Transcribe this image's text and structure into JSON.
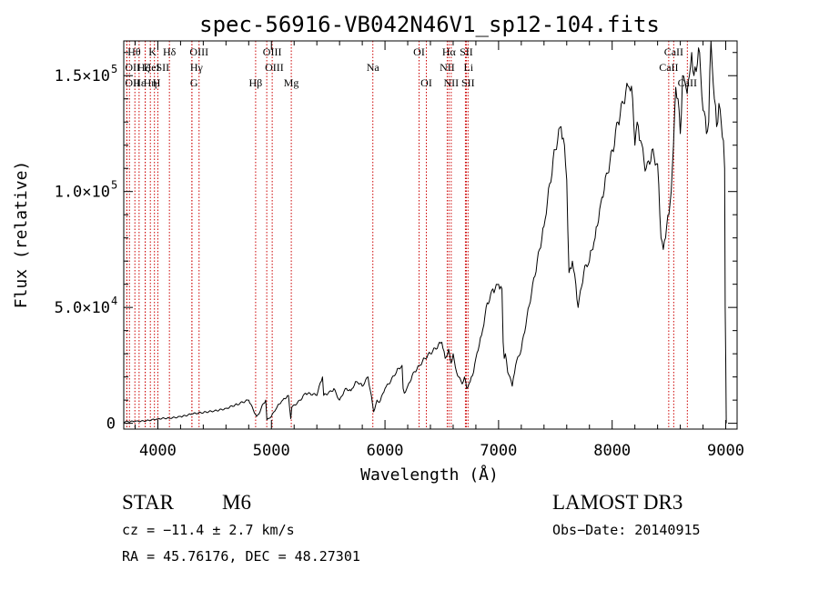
{
  "chart_data": {
    "type": "line",
    "title": "spec-56916-VB042N46V1_sp12-104.fits",
    "xlabel": "Wavelength (Å)",
    "ylabel": "Flux (relative)",
    "xlim": [
      3700,
      9100
    ],
    "ylim": [
      -2500,
      165000
    ],
    "x_ticks": [
      {
        "value": 4000,
        "label": "4000"
      },
      {
        "value": 5000,
        "label": "5000"
      },
      {
        "value": 6000,
        "label": "6000"
      },
      {
        "value": 7000,
        "label": "7000"
      },
      {
        "value": 8000,
        "label": "8000"
      },
      {
        "value": 9000,
        "label": "9000"
      }
    ],
    "y_ticks": [
      {
        "value": 0,
        "mant": "0",
        "exp": ""
      },
      {
        "value": 50000,
        "mant": "5.0×10",
        "exp": "4"
      },
      {
        "value": 100000,
        "mant": "1.0×10",
        "exp": "5"
      },
      {
        "value": 150000,
        "mant": "1.5×10",
        "exp": "5"
      }
    ],
    "series": [
      {
        "name": "spectrum",
        "color": "#000000",
        "x": [
          3700,
          3800,
          3900,
          4000,
          4100,
          4200,
          4300,
          4400,
          4500,
          4600,
          4700,
          4800,
          4870,
          4900,
          4920,
          4950,
          4960,
          5000,
          5050,
          5100,
          5150,
          5170,
          5180,
          5250,
          5300,
          5400,
          5450,
          5460,
          5500,
          5550,
          5600,
          5650,
          5700,
          5750,
          5800,
          5850,
          5880,
          5900,
          5930,
          5950,
          6000,
          6050,
          6100,
          6150,
          6160,
          6170,
          6200,
          6250,
          6300,
          6350,
          6400,
          6450,
          6500,
          6530,
          6560,
          6580,
          6600,
          6620,
          6650,
          6680,
          6700,
          6720,
          6750,
          6780,
          6800,
          6850,
          6900,
          6950,
          7000,
          7030,
          7040,
          7050,
          7060,
          7080,
          7100,
          7120,
          7150,
          7200,
          7300,
          7400,
          7500,
          7550,
          7580,
          7600,
          7620,
          7650,
          7680,
          7700,
          7750,
          7800,
          7850,
          7900,
          7950,
          8000,
          8050,
          8100,
          8150,
          8180,
          8200,
          8220,
          8250,
          8300,
          8350,
          8400,
          8430,
          8450,
          8470,
          8480,
          8500,
          8520,
          8540,
          8560,
          8580,
          8600,
          8620,
          8650,
          8680,
          8700,
          8720,
          8750,
          8760,
          8780,
          8800,
          8830,
          8850,
          8870,
          8900,
          8920,
          8940,
          8960,
          8980,
          8990,
          8995,
          9000,
          9005
        ],
        "y": [
          500,
          900,
          1200,
          1800,
          2200,
          3000,
          4000,
          4500,
          5500,
          6500,
          8000,
          10000,
          3000,
          5000,
          8000,
          10000,
          1500,
          3000,
          7000,
          10000,
          12000,
          2000,
          7000,
          10000,
          13000,
          12000,
          20000,
          12000,
          13000,
          15000,
          10000,
          15000,
          14000,
          18000,
          16000,
          20000,
          12000,
          5000,
          10000,
          9000,
          15000,
          18000,
          22000,
          25000,
          15000,
          13000,
          16000,
          22000,
          25000,
          28000,
          30000,
          32000,
          35000,
          28000,
          32000,
          26000,
          30000,
          24000,
          20000,
          17000,
          20000,
          15000,
          18000,
          22000,
          28000,
          38000,
          52000,
          58000,
          60000,
          58000,
          35000,
          28000,
          30000,
          22000,
          20000,
          16000,
          25000,
          32000,
          60000,
          85000,
          118000,
          128000,
          120000,
          105000,
          65000,
          70000,
          60000,
          50000,
          65000,
          70000,
          80000,
          95000,
          108000,
          118000,
          130000,
          138000,
          145000,
          140000,
          120000,
          130000,
          122000,
          110000,
          118000,
          112000,
          80000,
          75000,
          80000,
          85000,
          90000,
          100000,
          120000,
          145000,
          140000,
          125000,
          150000,
          145000,
          150000,
          160000,
          150000,
          155000,
          162000,
          150000,
          135000,
          125000,
          130000,
          165000,
          140000,
          128000,
          138000,
          130000,
          122000,
          110000,
          50000,
          28000,
          0
        ]
      }
    ],
    "lines": [
      {
        "wave": 3750,
        "text": "Hθ",
        "row": 0,
        "anchor": "start"
      },
      {
        "wave": 3727,
        "text": "OII",
        "row": 1,
        "anchor": "start"
      },
      {
        "wave": 3727,
        "text": "OII",
        "row": 2,
        "anchor": "start"
      },
      {
        "wave": 3798,
        "text": "Hε",
        "row": 2,
        "anchor": "start"
      },
      {
        "wave": 3835,
        "text": "Hζ",
        "row": 1,
        "anchor": "start"
      },
      {
        "wave": 3889,
        "text": "HeI",
        "row": 1,
        "anchor": "start"
      },
      {
        "wave": 3889,
        "text": "Hη",
        "row": 2,
        "anchor": "start"
      },
      {
        "wave": 3934,
        "text": "K",
        "row": 0,
        "anchor": "start"
      },
      {
        "wave": 3970,
        "text": "H",
        "row": 2,
        "anchor": "start"
      },
      {
        "wave": 4000,
        "text": "SII",
        "row": 1,
        "anchor": "start"
      },
      {
        "wave": 4102,
        "text": "Hδ",
        "row": 0,
        "anchor": "middle"
      },
      {
        "wave": 4300,
        "text": "G",
        "row": 2,
        "anchor": "start"
      },
      {
        "wave": 4300,
        "text": "Hγ",
        "row": 1,
        "anchor": "start"
      },
      {
        "wave": 4363,
        "text": "OIII",
        "row": 0,
        "anchor": "middle"
      },
      {
        "wave": 4861,
        "text": "Hβ",
        "row": 2,
        "anchor": "middle"
      },
      {
        "wave": 4959,
        "text": "OIII",
        "row": 1,
        "anchor": "start"
      },
      {
        "wave": 5007,
        "text": "OIII",
        "row": 0,
        "anchor": "middle"
      },
      {
        "wave": 5175,
        "text": "Mg",
        "row": 2,
        "anchor": "middle"
      },
      {
        "wave": 5893,
        "text": "Na",
        "row": 1,
        "anchor": "middle"
      },
      {
        "wave": 6300,
        "text": "OI",
        "row": 0,
        "anchor": "middle"
      },
      {
        "wave": 6364,
        "text": "OI",
        "row": 2,
        "anchor": "middle"
      },
      {
        "wave": 6548,
        "text": "NII",
        "row": 1,
        "anchor": "middle"
      },
      {
        "wave": 6563,
        "text": "Hα",
        "row": 0,
        "anchor": "middle"
      },
      {
        "wave": 6583,
        "text": "NII",
        "row": 2,
        "anchor": "middle"
      },
      {
        "wave": 6708,
        "text": "Li",
        "row": 1,
        "anchor": "start"
      },
      {
        "wave": 6716,
        "text": "SII",
        "row": 0,
        "anchor": "middle"
      },
      {
        "wave": 6731,
        "text": "SII",
        "row": 2,
        "anchor": "middle"
      },
      {
        "wave": 8498,
        "text": "CaII",
        "row": 1,
        "anchor": "middle"
      },
      {
        "wave": 8542,
        "text": "CaII",
        "row": 0,
        "anchor": "middle"
      },
      {
        "wave": 8662,
        "text": "CaII",
        "row": 2,
        "anchor": "middle"
      }
    ]
  },
  "info": {
    "object_class": "STAR",
    "subclass": "M6",
    "survey": "LAMOST DR3",
    "cz": "cz = −11.4 ± 2.7 km/s",
    "obs_date": "Obs−Date: 20140915",
    "radec": "RA =  45.76176, DEC =  48.27301"
  },
  "colors": {
    "line_marker": "#cc0000",
    "spectrum": "#000000",
    "axes": "#000000"
  }
}
